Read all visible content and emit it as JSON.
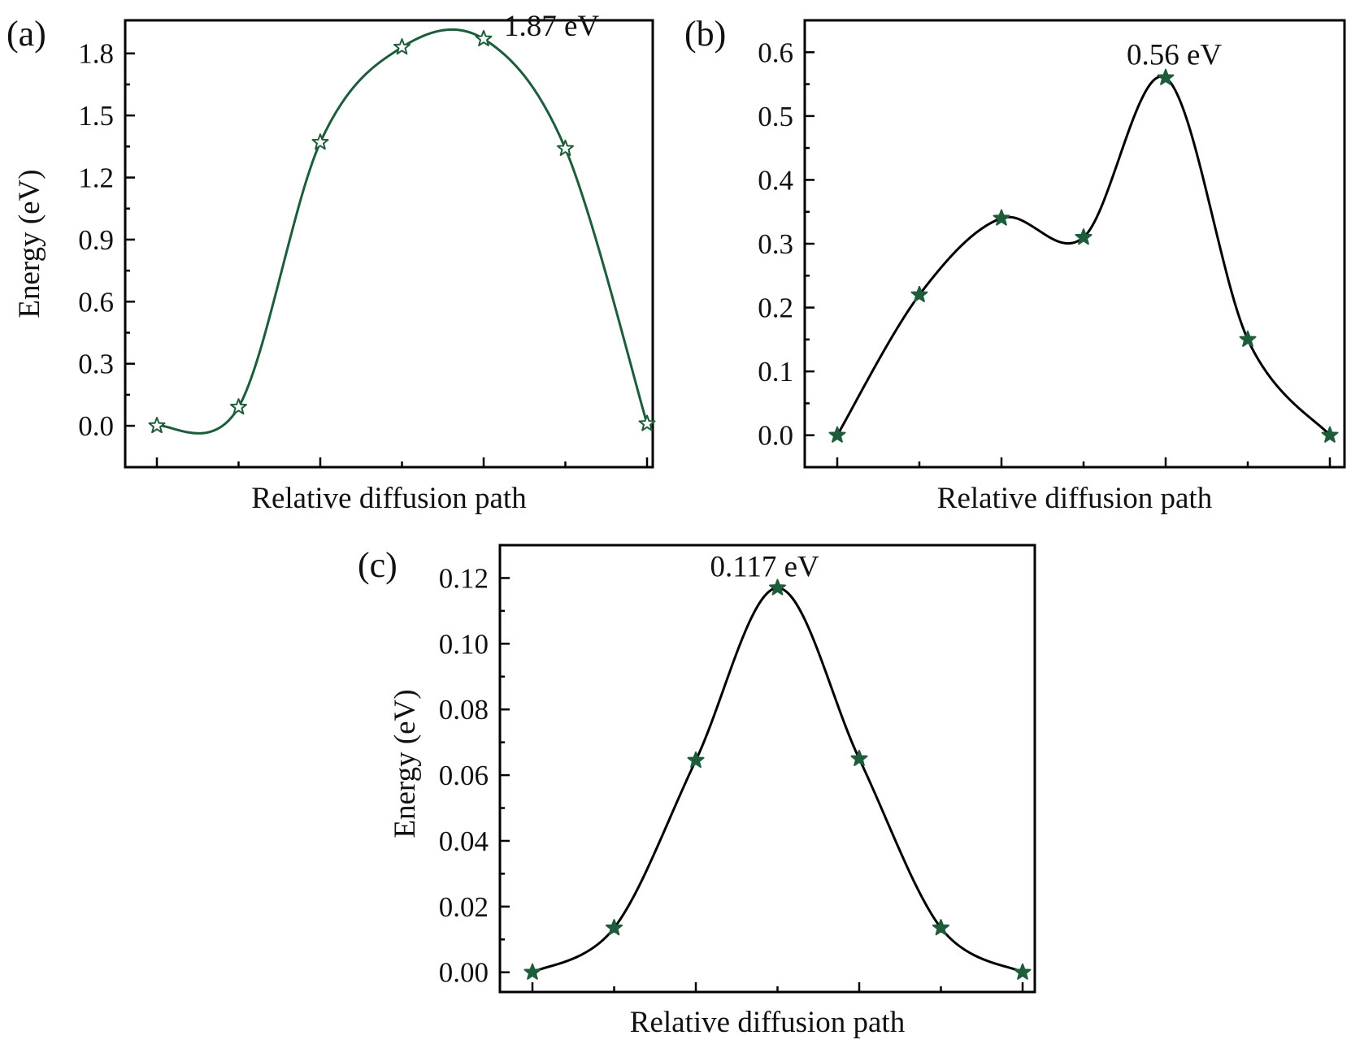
{
  "chart_data": [
    {
      "type": "line",
      "panel_label": "(a)",
      "xlabel": "Relative diffusion path",
      "ylabel": "Energy (eV)",
      "x": [
        0,
        1,
        2,
        3,
        4,
        5,
        6
      ],
      "values": [
        0.0,
        0.09,
        1.37,
        1.83,
        1.87,
        1.34,
        0.01
      ],
      "ylim": [
        -0.2,
        1.96
      ],
      "yticks": [
        "0.0",
        "0.3",
        "0.6",
        "0.9",
        "1.2",
        "1.5",
        "1.8"
      ],
      "ytick_values": [
        0.0,
        0.3,
        0.6,
        0.9,
        1.2,
        1.5,
        1.8
      ],
      "annotation": {
        "text": "1.87 eV",
        "at_index": 4
      },
      "line_color": "#1d5c3c",
      "marker": "star",
      "marker_fill": "#ffffff",
      "grid": false
    },
    {
      "type": "line",
      "panel_label": "(b)",
      "xlabel": "Relative diffusion path",
      "ylabel": "",
      "x": [
        0,
        1,
        2,
        3,
        4,
        5,
        6
      ],
      "values": [
        0.0,
        0.22,
        0.34,
        0.31,
        0.56,
        0.15,
        0.0
      ],
      "ylim": [
        -0.05,
        0.65
      ],
      "yticks": [
        "0.0",
        "0.1",
        "0.2",
        "0.3",
        "0.4",
        "0.5",
        "0.6"
      ],
      "ytick_values": [
        0.0,
        0.1,
        0.2,
        0.3,
        0.4,
        0.5,
        0.6
      ],
      "annotation": {
        "text": "0.56 eV",
        "at_index": 4
      },
      "line_color": "#000000",
      "marker": "star",
      "marker_fill": "#1d5c3c",
      "grid": false
    },
    {
      "type": "line",
      "panel_label": "(c)",
      "xlabel": "Relative diffusion path",
      "ylabel": "Energy (eV)",
      "x": [
        0,
        1,
        2,
        3,
        4,
        5,
        6
      ],
      "values": [
        0.0,
        0.0135,
        0.0645,
        0.117,
        0.065,
        0.0135,
        0.0
      ],
      "ylim": [
        -0.006,
        0.13
      ],
      "yticks": [
        "0.00",
        "0.02",
        "0.04",
        "0.06",
        "0.08",
        "0.10",
        "0.12"
      ],
      "ytick_values": [
        0.0,
        0.02,
        0.04,
        0.06,
        0.08,
        0.1,
        0.12
      ],
      "annotation": {
        "text": "0.117 eV",
        "at_index": 3
      },
      "line_color": "#000000",
      "marker": "star",
      "marker_fill": "#1d5c3c",
      "grid": false
    }
  ]
}
